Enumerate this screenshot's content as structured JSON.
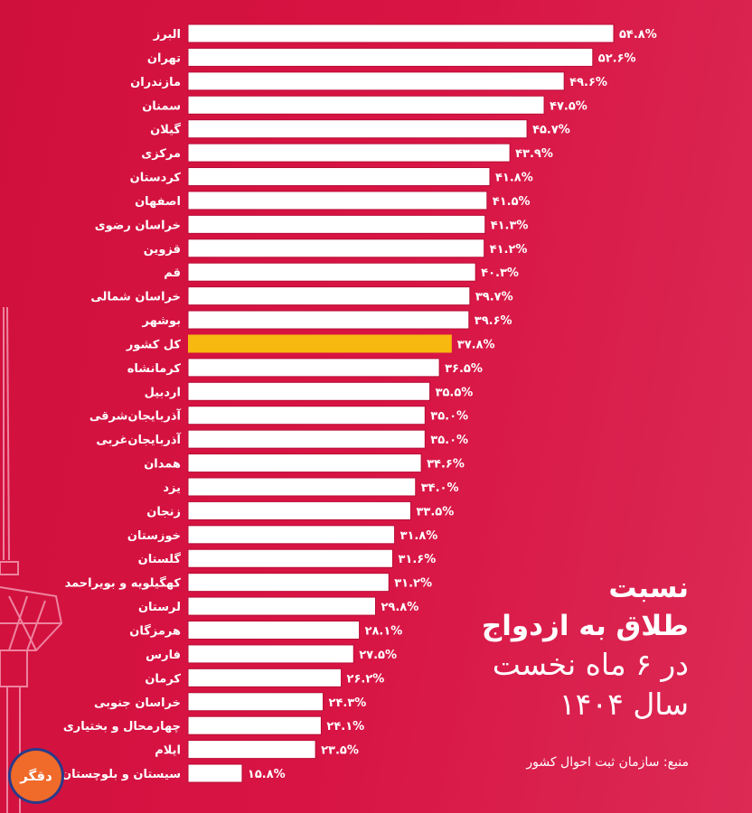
{
  "chart_data": {
    "type": "bar",
    "orientation": "horizontal",
    "title": [
      "نسبت",
      "طلاق به ازدواج",
      "در ۶ ماه نخست",
      "سال ۱۴۰۴"
    ],
    "source": "منبع: سازمان ثبت احوال کشور",
    "categories": [
      "البرز",
      "تهران",
      "مازندران",
      "سمنان",
      "گیلان",
      "مرکزی",
      "کردستان",
      "اصفهان",
      "خراسان رضوی",
      "قزوین",
      "قم",
      "خراسان شمالی",
      "بوشهر",
      "کل کشور",
      "کرمانشاه",
      "اردبیل",
      "آذربایجان‌شرقی",
      "آذربایجان‌غربی",
      "همدان",
      "یزد",
      "زنجان",
      "خوزستان",
      "گلستان",
      "کهگیلویه و بویراحمد",
      "لرستان",
      "هرمزگان",
      "فارس",
      "کرمان",
      "خراسان جنوبی",
      "چهارمحال و بختیاری",
      "ایلام",
      "سیستان و بلوچستان"
    ],
    "values": [
      54.8,
      52.6,
      49.6,
      47.5,
      45.7,
      43.9,
      41.8,
      41.5,
      41.3,
      41.2,
      40.3,
      39.7,
      39.6,
      37.8,
      36.5,
      35.5,
      35.0,
      35.0,
      34.6,
      34.0,
      33.5,
      31.8,
      31.6,
      31.2,
      29.8,
      28.1,
      27.5,
      26.2,
      24.3,
      24.1,
      23.5,
      15.8
    ],
    "value_labels": [
      "۵۴.۸%",
      "۵۲.۶%",
      "۴۹.۶%",
      "۴۷.۵%",
      "۴۵.۷%",
      "۴۳.۹%",
      "۴۱.۸%",
      "۴۱.۵%",
      "۴۱.۳%",
      "۴۱.۲%",
      "۴۰.۳%",
      "۳۹.۷%",
      "۳۹.۶%",
      "۳۷.۸%",
      "۳۶.۵%",
      "۳۵.۵%",
      "۳۵.۰%",
      "۳۵.۰%",
      "۳۴.۶%",
      "۳۴.۰%",
      "۳۳.۵%",
      "۳۱.۸%",
      "۳۱.۶%",
      "۳۱.۲%",
      "۲۹.۸%",
      "۲۸.۱%",
      "۲۷.۵%",
      "۲۶.۲%",
      "۲۴.۳%",
      "۲۴.۱%",
      "۲۳.۵%",
      "۱۵.۸%"
    ],
    "highlight": "کل کشور",
    "colors": {
      "bar": "#ffffff",
      "highlight": "#f7b80f",
      "background": "#d41240"
    },
    "grid": false,
    "legend": "none"
  },
  "logo_text": "دقگر"
}
